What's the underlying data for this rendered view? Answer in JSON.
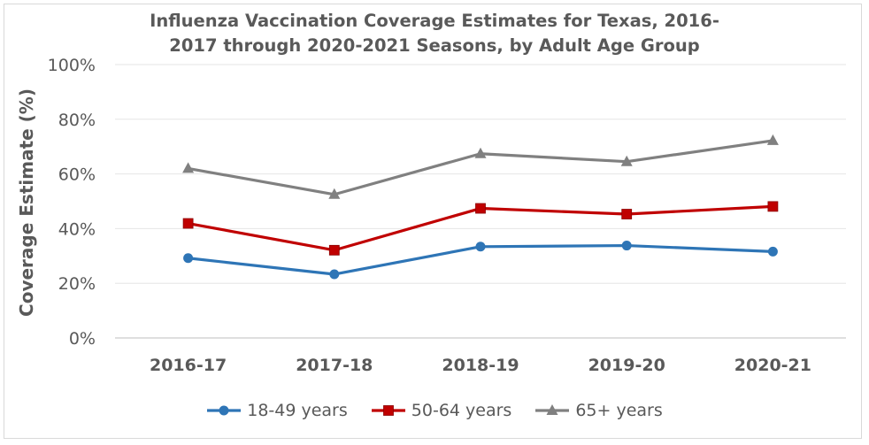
{
  "chart_data": {
    "type": "line",
    "title_line1": "Influenza Vaccination Coverage Estimates for Texas, 2016-",
    "title_line2": "2017 through 2020-2021 Seasons, by Adult Age Group",
    "ylabel": "Coverage Estimate (%)",
    "xlabel": "",
    "categories": [
      "2016-17",
      "2017-18",
      "2018-19",
      "2019-20",
      "2020-21"
    ],
    "ylim": [
      0,
      100
    ],
    "yticks": [
      0,
      20,
      40,
      60,
      80,
      100
    ],
    "ytick_labels": [
      "0%",
      "20%",
      "40%",
      "60%",
      "80%",
      "100%"
    ],
    "grid": true,
    "legend_position": "bottom",
    "series": [
      {
        "name": "18-49 years",
        "color": "#2e75b6",
        "marker": "circle",
        "values": [
          29.2,
          23.3,
          33.4,
          33.8,
          31.6
        ]
      },
      {
        "name": "50-64 years",
        "color": "#c00000",
        "marker": "square",
        "values": [
          41.9,
          32.1,
          47.4,
          45.3,
          48.1
        ]
      },
      {
        "name": "65+ years",
        "color": "#808080",
        "marker": "triangle",
        "values": [
          62.0,
          52.5,
          67.4,
          64.5,
          72.2
        ]
      }
    ]
  }
}
